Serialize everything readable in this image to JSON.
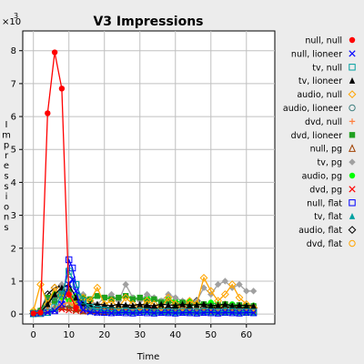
{
  "chart_data": {
    "type": "line",
    "title": "V3 Impressions",
    "xlabel": "Time",
    "ylabel": "Impressions",
    "y_multiplier": "×10",
    "y_multiplier_exp": "3",
    "xlim": [
      -3,
      68
    ],
    "ylim": [
      -0.3,
      8.6
    ],
    "x_ticks": [
      0,
      10,
      20,
      30,
      40,
      50,
      60
    ],
    "y_ticks": [
      0,
      1,
      2,
      3,
      4,
      5,
      6,
      7,
      8
    ],
    "grid": true,
    "legend_position": "right",
    "series": [
      {
        "name": "null, null",
        "color": "#ff0000",
        "marker": "filled-circle",
        "x": [
          0,
          2,
          4,
          6,
          8,
          10,
          12
        ],
        "y": [
          0.02,
          0.05,
          6.1,
          7.95,
          6.85,
          0.6,
          0.2
        ]
      },
      {
        "name": "null, lioneer",
        "color": "#0000ff",
        "marker": "x",
        "x": [
          0,
          2,
          4,
          6,
          8,
          10,
          11,
          12,
          13,
          14,
          16,
          18,
          20,
          22,
          24,
          26,
          28,
          30,
          32,
          34,
          36,
          38,
          40,
          42,
          44,
          46,
          48,
          50,
          52,
          54,
          56,
          58,
          60,
          62
        ],
        "y": [
          0.01,
          0.02,
          0.05,
          0.1,
          0.3,
          0.9,
          1.05,
          0.7,
          0.3,
          0.12,
          0.06,
          0.04,
          0.05,
          0.03,
          0.04,
          0.05,
          0.03,
          0.04,
          0.06,
          0.03,
          0.04,
          0.05,
          0.03,
          0.04,
          0.05,
          0.03,
          0.04,
          0.06,
          0.03,
          0.05,
          0.04,
          0.03,
          0.05,
          0.04
        ]
      },
      {
        "name": "tv, null",
        "color": "#00a0a0",
        "marker": "open-square",
        "x": [
          0,
          2,
          4,
          6,
          8,
          10,
          12,
          14,
          16,
          18,
          20,
          22,
          24,
          26,
          28,
          30,
          32,
          34,
          36,
          38,
          40,
          42,
          44,
          46,
          48,
          50,
          52,
          54,
          56,
          58,
          60,
          62
        ],
        "y": [
          0.01,
          0.02,
          0.05,
          0.2,
          0.6,
          1.3,
          0.9,
          0.4,
          0.2,
          0.15,
          0.12,
          0.1,
          0.08,
          0.1,
          0.07,
          0.09,
          0.08,
          0.06,
          0.08,
          0.07,
          0.06,
          0.08,
          0.07,
          0.06,
          0.08,
          0.07,
          0.06,
          0.07,
          0.08,
          0.06,
          0.07,
          0.06
        ]
      },
      {
        "name": "tv, lioneer",
        "color": "#000000",
        "marker": "filled-triangle",
        "x": [
          0,
          2,
          4,
          6,
          8,
          10,
          12,
          14,
          16,
          18,
          20,
          22,
          24,
          26,
          28,
          30,
          32,
          34,
          36,
          38,
          40,
          42,
          44,
          46,
          48,
          50,
          52,
          54,
          56,
          58,
          60,
          62
        ],
        "y": [
          0.02,
          0.05,
          0.3,
          0.6,
          0.8,
          0.9,
          0.5,
          0.35,
          0.3,
          0.3,
          0.28,
          0.25,
          0.3,
          0.28,
          0.26,
          0.3,
          0.27,
          0.25,
          0.3,
          0.28,
          0.26,
          0.3,
          0.27,
          0.28,
          0.3,
          0.26,
          0.27,
          0.3,
          0.25,
          0.27,
          0.26,
          0.25
        ]
      },
      {
        "name": "audio, null",
        "color": "#ffa500",
        "marker": "open-diamond",
        "x": [
          0,
          2,
          4,
          6,
          8,
          10,
          12,
          14,
          16,
          18,
          20,
          22,
          24,
          26,
          28,
          30,
          32,
          34,
          36,
          38,
          40,
          42,
          44,
          46,
          48,
          50,
          52,
          54,
          56,
          58,
          60,
          62
        ],
        "y": [
          0.1,
          0.9,
          0.3,
          0.8,
          0.5,
          0.6,
          0.3,
          0.5,
          0.4,
          0.8,
          0.3,
          0.4,
          0.2,
          0.5,
          0.3,
          0.2,
          0.4,
          0.3,
          0.2,
          0.5,
          0.3,
          0.2,
          0.4,
          0.3,
          1.1,
          0.7,
          0.4,
          0.6,
          0.9,
          0.5,
          0.3,
          0.2
        ]
      },
      {
        "name": "audio, lioneer",
        "color": "#408080",
        "marker": "open-circle",
        "x": [
          0,
          2,
          4,
          6,
          8,
          10,
          12,
          14,
          16,
          18,
          20,
          22,
          24,
          26,
          28,
          30,
          32,
          34,
          36,
          38,
          40,
          42,
          44,
          46,
          48,
          50,
          52,
          54,
          56,
          58,
          60,
          62
        ],
        "y": [
          0.02,
          0.05,
          0.4,
          0.5,
          0.7,
          0.6,
          0.3,
          0.2,
          0.15,
          0.12,
          0.1,
          0.12,
          0.1,
          0.08,
          0.1,
          0.12,
          0.09,
          0.1,
          0.08,
          0.1,
          0.09,
          0.08,
          0.1,
          0.09,
          0.1,
          0.08,
          0.09,
          0.1,
          0.08,
          0.09,
          0.1,
          0.08
        ]
      },
      {
        "name": "dvd, null",
        "color": "#ff8040",
        "marker": "plus",
        "x": [
          0,
          2,
          4,
          6,
          8,
          10,
          12,
          14,
          16,
          18,
          20,
          22,
          24,
          26,
          28,
          30,
          32,
          34,
          36,
          38,
          40,
          42,
          44,
          46,
          48,
          50,
          52,
          54,
          56,
          58,
          60,
          62
        ],
        "y": [
          0.01,
          0.03,
          0.1,
          0.2,
          0.3,
          0.35,
          0.2,
          0.15,
          0.12,
          0.1,
          0.12,
          0.1,
          0.08,
          0.1,
          0.12,
          0.1,
          0.08,
          0.1,
          0.12,
          0.1,
          0.09,
          0.1,
          0.12,
          0.1,
          0.11,
          0.1,
          0.12,
          0.1,
          0.09,
          0.1,
          0.11,
          0.1
        ]
      },
      {
        "name": "dvd, lioneer",
        "color": "#20a020",
        "marker": "filled-square",
        "x": [
          0,
          2,
          4,
          6,
          8,
          10,
          12,
          14,
          16,
          18,
          20,
          22,
          24,
          26,
          28,
          30,
          32,
          34,
          36,
          38,
          40,
          42,
          44,
          46,
          48,
          50,
          52,
          54,
          56,
          58,
          60,
          62
        ],
        "y": [
          0.05,
          0.1,
          0.5,
          0.4,
          0.6,
          0.7,
          0.4,
          0.5,
          0.45,
          0.55,
          0.5,
          0.45,
          0.5,
          0.55,
          0.45,
          0.5,
          0.4,
          0.45,
          0.35,
          0.4,
          0.3,
          0.35,
          0.3,
          0.28,
          0.3,
          0.25,
          0.28,
          0.3,
          0.25,
          0.27,
          0.25,
          0.24
        ]
      },
      {
        "name": "null, pg",
        "color": "#a04000",
        "marker": "open-triangle",
        "x": [
          0,
          2,
          4,
          6,
          8,
          10,
          12,
          14,
          16,
          18,
          20,
          22,
          24,
          26,
          28,
          30,
          32,
          34,
          36,
          38,
          40,
          42,
          44,
          46,
          48,
          50,
          52,
          54,
          56,
          58,
          60,
          62
        ],
        "y": [
          0.01,
          0.02,
          0.1,
          0.2,
          0.25,
          0.2,
          0.15,
          0.1,
          0.12,
          0.1,
          0.08,
          0.1,
          0.12,
          0.1,
          0.08,
          0.1,
          0.12,
          0.1,
          0.08,
          0.1,
          0.12,
          0.1,
          0.08,
          0.1,
          0.12,
          0.1,
          0.08,
          0.1,
          0.12,
          0.1,
          0.08,
          0.1
        ]
      },
      {
        "name": "tv, pg",
        "color": "#a0a0a0",
        "marker": "filled-diamond",
        "x": [
          0,
          2,
          4,
          6,
          8,
          10,
          12,
          14,
          16,
          18,
          20,
          22,
          24,
          26,
          28,
          30,
          32,
          34,
          36,
          38,
          40,
          42,
          44,
          46,
          48,
          50,
          52,
          54,
          56,
          58,
          60,
          62
        ],
        "y": [
          0.01,
          0.05,
          0.2,
          0.5,
          0.9,
          0.6,
          0.5,
          0.6,
          0.4,
          0.3,
          0.5,
          0.6,
          0.4,
          0.9,
          0.5,
          0.4,
          0.6,
          0.5,
          0.4,
          0.6,
          0.5,
          0.4,
          0.3,
          0.4,
          0.8,
          0.6,
          0.9,
          1.0,
          0.8,
          0.9,
          0.7,
          0.7
        ]
      },
      {
        "name": "audio, pg",
        "color": "#00ff00",
        "marker": "filled-circle",
        "x": [
          0,
          2,
          4,
          6,
          8,
          10,
          12,
          14,
          16,
          18,
          20,
          22,
          24,
          26,
          28,
          30,
          32,
          34,
          36,
          38,
          40,
          42,
          44,
          46,
          48,
          50,
          52,
          54,
          56,
          58,
          60,
          62
        ],
        "y": [
          0.01,
          0.05,
          0.3,
          0.6,
          0.5,
          0.4,
          0.55,
          0.5,
          0.45,
          0.55,
          0.5,
          0.5,
          0.45,
          0.55,
          0.5,
          0.45,
          0.5,
          0.45,
          0.4,
          0.45,
          0.4,
          0.35,
          0.4,
          0.35,
          0.3,
          0.35,
          0.3,
          0.28,
          0.3,
          0.27,
          0.25,
          0.26
        ]
      },
      {
        "name": "dvd, pg",
        "color": "#ff0000",
        "marker": "x",
        "x": [
          0,
          2,
          4,
          6,
          8,
          10,
          12,
          14,
          16,
          18,
          20,
          22,
          24,
          26,
          28,
          30,
          32,
          34,
          36,
          38,
          40,
          42,
          44,
          46,
          48,
          50,
          52,
          54,
          56,
          58,
          60,
          62
        ],
        "y": [
          0.01,
          0.02,
          0.05,
          0.1,
          0.15,
          0.12,
          0.1,
          0.08,
          0.1,
          0.12,
          0.1,
          0.08,
          0.1,
          0.12,
          0.1,
          0.08,
          0.1,
          0.12,
          0.1,
          0.08,
          0.1,
          0.12,
          0.1,
          0.08,
          0.1,
          0.15,
          0.12,
          0.1,
          0.08,
          0.1,
          0.12,
          0.1
        ]
      },
      {
        "name": "null, flat",
        "color": "#0000ff",
        "marker": "open-square",
        "x": [
          0,
          2,
          4,
          6,
          8,
          10,
          11,
          12,
          14,
          16,
          18,
          20,
          22,
          24,
          26,
          28,
          30,
          32,
          34,
          36,
          38,
          40,
          42,
          44,
          46,
          48,
          50,
          52,
          54,
          56,
          58,
          60,
          62
        ],
        "y": [
          0.01,
          0.02,
          0.05,
          0.1,
          0.3,
          1.65,
          1.4,
          0.9,
          0.3,
          0.1,
          0.06,
          0.05,
          0.04,
          0.05,
          0.04,
          0.03,
          0.05,
          0.04,
          0.03,
          0.05,
          0.04,
          0.03,
          0.05,
          0.04,
          0.03,
          0.05,
          0.04,
          0.03,
          0.05,
          0.04,
          0.03,
          0.05,
          0.04
        ]
      },
      {
        "name": "tv, flat",
        "color": "#00a0a0",
        "marker": "filled-triangle",
        "x": [
          0,
          2,
          4,
          6,
          8,
          10,
          12,
          14,
          16,
          18,
          20,
          22,
          24,
          26,
          28,
          30,
          32,
          34,
          36,
          38,
          40,
          42,
          44,
          46,
          48,
          50,
          52,
          54,
          56,
          58,
          60,
          62
        ],
        "y": [
          0.01,
          0.03,
          0.1,
          0.15,
          0.2,
          0.25,
          0.15,
          0.1,
          0.08,
          0.1,
          0.08,
          0.07,
          0.08,
          0.07,
          0.06,
          0.08,
          0.07,
          0.06,
          0.08,
          0.07,
          0.06,
          0.07,
          0.08,
          0.06,
          0.07,
          0.06,
          0.08,
          0.07,
          0.06,
          0.07,
          0.06,
          0.07
        ]
      },
      {
        "name": "audio, flat",
        "color": "#000000",
        "marker": "open-diamond",
        "x": [
          0,
          2,
          4,
          6,
          8,
          10,
          12,
          14,
          16,
          18,
          20,
          22,
          24,
          26,
          28,
          30,
          32,
          34,
          36,
          38,
          40,
          42,
          44,
          46,
          48,
          50,
          52,
          54,
          56,
          58,
          60,
          62
        ],
        "y": [
          0.02,
          0.1,
          0.6,
          0.8,
          0.85,
          0.5,
          0.3,
          0.25,
          0.2,
          0.22,
          0.2,
          0.18,
          0.2,
          0.22,
          0.18,
          0.2,
          0.22,
          0.18,
          0.2,
          0.18,
          0.2,
          0.22,
          0.18,
          0.4,
          0.2,
          0.22,
          0.18,
          0.2,
          0.22,
          0.18,
          0.2,
          0.18
        ]
      },
      {
        "name": "dvd, flat",
        "color": "#ffa500",
        "marker": "open-circle",
        "x": [
          0,
          2,
          4,
          6,
          8,
          10,
          12,
          14,
          16,
          18,
          20,
          22,
          24,
          26,
          28,
          30,
          32,
          34,
          36,
          38,
          40,
          42,
          44,
          46,
          48,
          50,
          52,
          54,
          56,
          58,
          60,
          62
        ],
        "y": [
          0.02,
          0.1,
          0.4,
          0.6,
          0.7,
          0.3,
          0.2,
          0.15,
          0.12,
          0.15,
          0.12,
          0.1,
          0.12,
          0.15,
          0.12,
          0.1,
          0.12,
          0.15,
          0.12,
          0.1,
          0.12,
          0.15,
          0.12,
          0.1,
          0.2,
          0.25,
          0.2,
          0.3,
          0.25,
          0.2,
          0.15,
          0.12
        ]
      }
    ]
  }
}
